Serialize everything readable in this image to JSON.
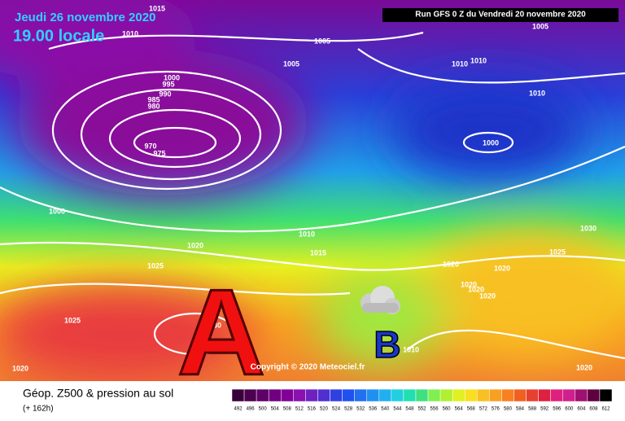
{
  "header": {
    "date": "Jeudi 26 novembre 2020",
    "time": "19.00 locale",
    "run": "Run GFS 0 Z du Vendredi 20 novembre 2020"
  },
  "map": {
    "high_label": "A",
    "low_label": "B",
    "copyright": "Copyright © 2020 Meteociel.fr",
    "isobar_labels": [
      "1015",
      "1010",
      "1005",
      "1005",
      "1005",
      "1010",
      "1010",
      "1010",
      "1000",
      "995",
      "990",
      "985",
      "980",
      "970",
      "975",
      "1000",
      "1000",
      "1010",
      "1015",
      "1020",
      "1025",
      "1025",
      "1030",
      "1020",
      "1020",
      "1025",
      "1030",
      "1020",
      "1020",
      "1020",
      "1010",
      "1020",
      "1020"
    ]
  },
  "footer": {
    "title": "Géop. Z500 & pression au sol",
    "lead": "(+ 162h)"
  },
  "colorbar": {
    "labels": [
      "492",
      "496",
      "500",
      "504",
      "508",
      "512",
      "516",
      "520",
      "524",
      "528",
      "532",
      "536",
      "540",
      "544",
      "548",
      "552",
      "556",
      "560",
      "564",
      "568",
      "572",
      "576",
      "580",
      "584",
      "588",
      "592",
      "596",
      "600",
      "604",
      "608",
      "612"
    ],
    "colors": [
      "#3a003a",
      "#4c0050",
      "#5e0068",
      "#700080",
      "#820098",
      "#8a10b0",
      "#7020c0",
      "#5030d0",
      "#3040e0",
      "#2050f0",
      "#2070f0",
      "#2090f0",
      "#20b0f0",
      "#20d0e0",
      "#20e0b0",
      "#40e080",
      "#80f050",
      "#b0f030",
      "#e0f020",
      "#f8e020",
      "#f8c020",
      "#f8a020",
      "#f88020",
      "#f06020",
      "#e84030",
      "#e02040",
      "#e02080",
      "#d02090",
      "#a01070",
      "#600040",
      "#000000"
    ]
  }
}
